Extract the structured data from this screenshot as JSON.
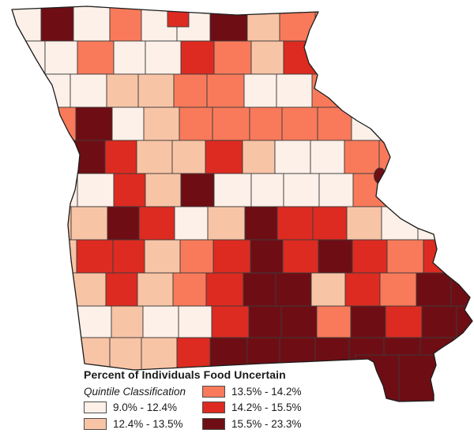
{
  "legend": {
    "title": "Percent of Individuals Food Uncertain",
    "subtitle": "Quintile Classification",
    "classes": [
      {
        "label": "9.0% - 12.4%",
        "color": "#fdf0e8"
      },
      {
        "label": "12.4% - 13.5%",
        "color": "#f8c4a6"
      },
      {
        "label": "13.5% - 14.2%",
        "color": "#f87a5a"
      },
      {
        "label": "14.2% - 15.5%",
        "color": "#dd2b21"
      },
      {
        "label": "15.5% - 23.3%",
        "color": "#6e0e14"
      }
    ]
  },
  "map": {
    "type": "choropleth",
    "cell_stroke_color": "#3c3c3c",
    "state_outline_color": "#1c1c1c",
    "background_color": "#ffffff",
    "quintile_grid": [
      [
        1,
        5,
        1,
        3,
        1,
        1,
        5,
        2,
        3,
        3,
        0,
        0,
        0
      ],
      [
        1,
        1,
        3,
        1,
        1,
        4,
        3,
        2,
        4,
        4,
        0,
        0,
        0
      ],
      [
        0,
        1,
        1,
        2,
        2,
        3,
        3,
        1,
        1,
        3,
        0,
        0,
        0
      ],
      [
        0,
        3,
        5,
        1,
        2,
        3,
        3,
        3,
        3,
        3,
        1,
        0,
        0
      ],
      [
        0,
        1,
        5,
        4,
        2,
        2,
        4,
        2,
        1,
        1,
        3,
        0,
        0
      ],
      [
        0,
        1,
        1,
        4,
        2,
        5,
        1,
        1,
        1,
        1,
        3,
        0,
        0
      ],
      [
        0,
        2,
        2,
        5,
        4,
        1,
        2,
        5,
        4,
        4,
        2,
        1,
        1
      ],
      [
        0,
        2,
        4,
        4,
        2,
        3,
        4,
        5,
        4,
        5,
        4,
        3,
        4
      ],
      [
        0,
        0,
        2,
        4,
        2,
        3,
        4,
        5,
        5,
        2,
        4,
        3,
        5
      ],
      [
        0,
        0,
        1,
        2,
        1,
        1,
        4,
        5,
        5,
        3,
        5,
        4,
        5
      ],
      [
        0,
        0,
        2,
        2,
        2,
        4,
        5,
        5,
        5,
        5,
        5,
        5,
        5
      ]
    ],
    "bootheel_class": 5,
    "enclave_dot_class": 5,
    "north_small_county_class": 4
  }
}
